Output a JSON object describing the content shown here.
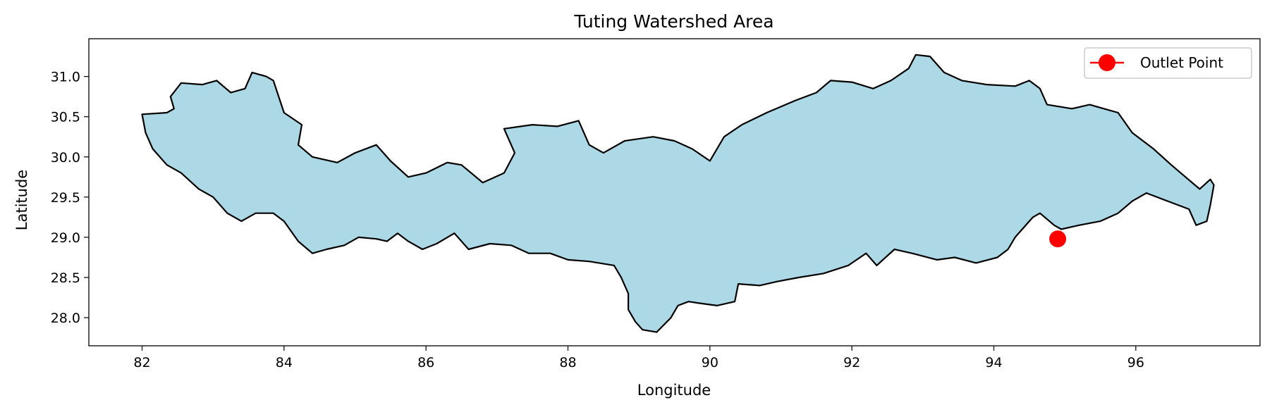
{
  "chart_data": {
    "type": "map",
    "title": "Tuting Watershed Area",
    "xlabel": "Longitude",
    "ylabel": "Latitude",
    "xlim": [
      81.25,
      97.75
    ],
    "ylim": [
      27.65,
      31.47
    ],
    "xticks": [
      82,
      84,
      86,
      88,
      90,
      92,
      94,
      96
    ],
    "yticks": [
      28.0,
      28.5,
      29.0,
      29.5,
      30.0,
      30.5,
      31.0
    ],
    "xtick_labels": [
      "82",
      "84",
      "86",
      "88",
      "90",
      "92",
      "94",
      "96"
    ],
    "ytick_labels": [
      "28.0",
      "28.5",
      "29.0",
      "29.5",
      "30.0",
      "30.5",
      "31.0"
    ],
    "legend_position": "top-right",
    "grid": false,
    "watershed": {
      "fill_color": "#add8e6",
      "edge_color": "#000000",
      "boundary": [
        [
          82.0,
          30.53
        ],
        [
          82.35,
          30.55
        ],
        [
          82.45,
          30.6
        ],
        [
          82.4,
          30.75
        ],
        [
          82.55,
          30.92
        ],
        [
          82.85,
          30.9
        ],
        [
          83.05,
          30.95
        ],
        [
          83.25,
          30.8
        ],
        [
          83.45,
          30.85
        ],
        [
          83.55,
          31.05
        ],
        [
          83.75,
          31.0
        ],
        [
          83.85,
          30.95
        ],
        [
          84.0,
          30.55
        ],
        [
          84.25,
          30.4
        ],
        [
          84.2,
          30.15
        ],
        [
          84.4,
          30.0
        ],
        [
          84.75,
          29.93
        ],
        [
          85.0,
          30.05
        ],
        [
          85.3,
          30.15
        ],
        [
          85.5,
          29.95
        ],
        [
          85.75,
          29.75
        ],
        [
          86.0,
          29.8
        ],
        [
          86.3,
          29.93
        ],
        [
          86.5,
          29.9
        ],
        [
          86.8,
          29.68
        ],
        [
          87.1,
          29.8
        ],
        [
          87.25,
          30.05
        ],
        [
          87.1,
          30.35
        ],
        [
          87.5,
          30.4
        ],
        [
          87.85,
          30.38
        ],
        [
          88.15,
          30.45
        ],
        [
          88.3,
          30.15
        ],
        [
          88.5,
          30.05
        ],
        [
          88.8,
          30.2
        ],
        [
          89.2,
          30.25
        ],
        [
          89.5,
          30.2
        ],
        [
          89.75,
          30.1
        ],
        [
          90.0,
          29.95
        ],
        [
          90.2,
          30.25
        ],
        [
          90.45,
          30.4
        ],
        [
          90.8,
          30.55
        ],
        [
          91.2,
          30.7
        ],
        [
          91.5,
          30.8
        ],
        [
          91.7,
          30.95
        ],
        [
          92.0,
          30.93
        ],
        [
          92.3,
          30.85
        ],
        [
          92.55,
          30.95
        ],
        [
          92.8,
          31.1
        ],
        [
          92.9,
          31.27
        ],
        [
          93.1,
          31.25
        ],
        [
          93.3,
          31.05
        ],
        [
          93.55,
          30.95
        ],
        [
          93.9,
          30.9
        ],
        [
          94.3,
          30.88
        ],
        [
          94.5,
          30.95
        ],
        [
          94.65,
          30.85
        ],
        [
          94.75,
          30.65
        ],
        [
          95.1,
          30.6
        ],
        [
          95.35,
          30.65
        ],
        [
          95.55,
          30.6
        ],
        [
          95.75,
          30.55
        ],
        [
          95.95,
          30.3
        ],
        [
          96.25,
          30.1
        ],
        [
          96.5,
          29.9
        ],
        [
          96.7,
          29.75
        ],
        [
          96.9,
          29.6
        ],
        [
          97.05,
          29.72
        ],
        [
          97.1,
          29.65
        ],
        [
          97.05,
          29.4
        ],
        [
          97.0,
          29.2
        ],
        [
          96.85,
          29.15
        ],
        [
          96.75,
          29.35
        ],
        [
          96.45,
          29.45
        ],
        [
          96.15,
          29.55
        ],
        [
          95.95,
          29.45
        ],
        [
          95.75,
          29.3
        ],
        [
          95.5,
          29.2
        ],
        [
          95.2,
          29.15
        ],
        [
          94.95,
          29.1
        ],
        [
          94.85,
          29.15
        ],
        [
          94.65,
          29.3
        ],
        [
          94.55,
          29.25
        ],
        [
          94.3,
          29.0
        ],
        [
          94.2,
          28.85
        ],
        [
          94.05,
          28.75
        ],
        [
          93.75,
          28.68
        ],
        [
          93.45,
          28.75
        ],
        [
          93.2,
          28.72
        ],
        [
          92.85,
          28.8
        ],
        [
          92.6,
          28.85
        ],
        [
          92.35,
          28.65
        ],
        [
          92.2,
          28.8
        ],
        [
          91.95,
          28.65
        ],
        [
          91.6,
          28.55
        ],
        [
          91.25,
          28.5
        ],
        [
          90.95,
          28.45
        ],
        [
          90.7,
          28.4
        ],
        [
          90.4,
          28.42
        ],
        [
          90.35,
          28.2
        ],
        [
          90.1,
          28.15
        ],
        [
          89.85,
          28.18
        ],
        [
          89.7,
          28.2
        ],
        [
          89.55,
          28.15
        ],
        [
          89.45,
          28.0
        ],
        [
          89.25,
          27.82
        ],
        [
          89.05,
          27.85
        ],
        [
          88.95,
          27.95
        ],
        [
          88.85,
          28.1
        ],
        [
          88.85,
          28.3
        ],
        [
          88.75,
          28.5
        ],
        [
          88.65,
          28.65
        ],
        [
          88.3,
          28.7
        ],
        [
          88.0,
          28.72
        ],
        [
          87.75,
          28.8
        ],
        [
          87.45,
          28.8
        ],
        [
          87.2,
          28.9
        ],
        [
          86.9,
          28.92
        ],
        [
          86.6,
          28.85
        ],
        [
          86.4,
          29.05
        ],
        [
          86.15,
          28.92
        ],
        [
          85.95,
          28.85
        ],
        [
          85.75,
          28.95
        ],
        [
          85.6,
          29.05
        ],
        [
          85.45,
          28.95
        ],
        [
          85.3,
          28.98
        ],
        [
          85.05,
          29.0
        ],
        [
          84.85,
          28.9
        ],
        [
          84.6,
          28.85
        ],
        [
          84.4,
          28.8
        ],
        [
          84.2,
          28.95
        ],
        [
          84.0,
          29.2
        ],
        [
          83.85,
          29.3
        ],
        [
          83.6,
          29.3
        ],
        [
          83.4,
          29.2
        ],
        [
          83.2,
          29.3
        ],
        [
          83.0,
          29.5
        ],
        [
          82.8,
          29.6
        ],
        [
          82.55,
          29.8
        ],
        [
          82.35,
          29.9
        ],
        [
          82.15,
          30.1
        ],
        [
          82.05,
          30.3
        ]
      ]
    },
    "series": [
      {
        "name": "Outlet Point",
        "type": "point",
        "color": "#ff0000",
        "x": [
          94.9
        ],
        "y": [
          28.98
        ]
      }
    ]
  }
}
